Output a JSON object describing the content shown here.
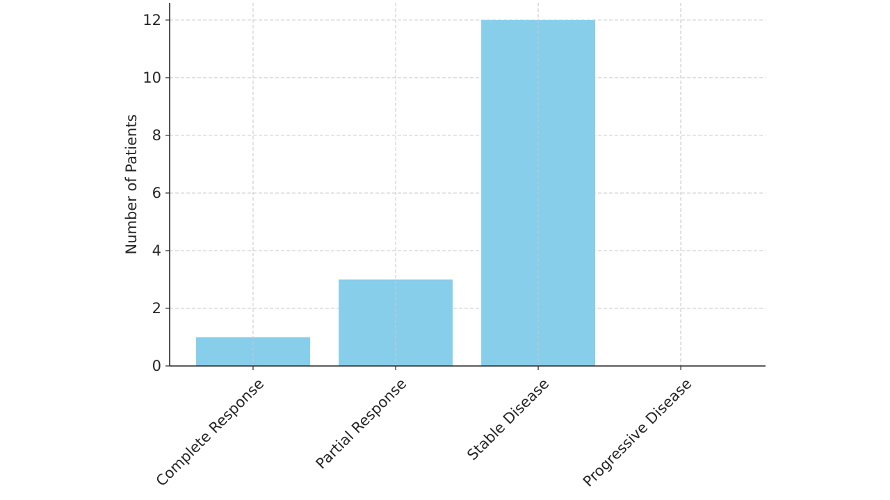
{
  "chart_data": {
    "type": "bar",
    "title": "",
    "xlabel": "",
    "ylabel": "Number of Patients",
    "categories": [
      "Complete Response",
      "Partial Response",
      "Stable Disease",
      "Progressive Disease"
    ],
    "values": [
      1,
      3,
      12,
      0
    ],
    "ylim": [
      0,
      12.6
    ],
    "yticks": [
      0,
      2,
      4,
      6,
      8,
      10,
      12
    ],
    "grid": true,
    "bar_color": "#87CEEB",
    "x_tick_rotation_deg": 45
  }
}
